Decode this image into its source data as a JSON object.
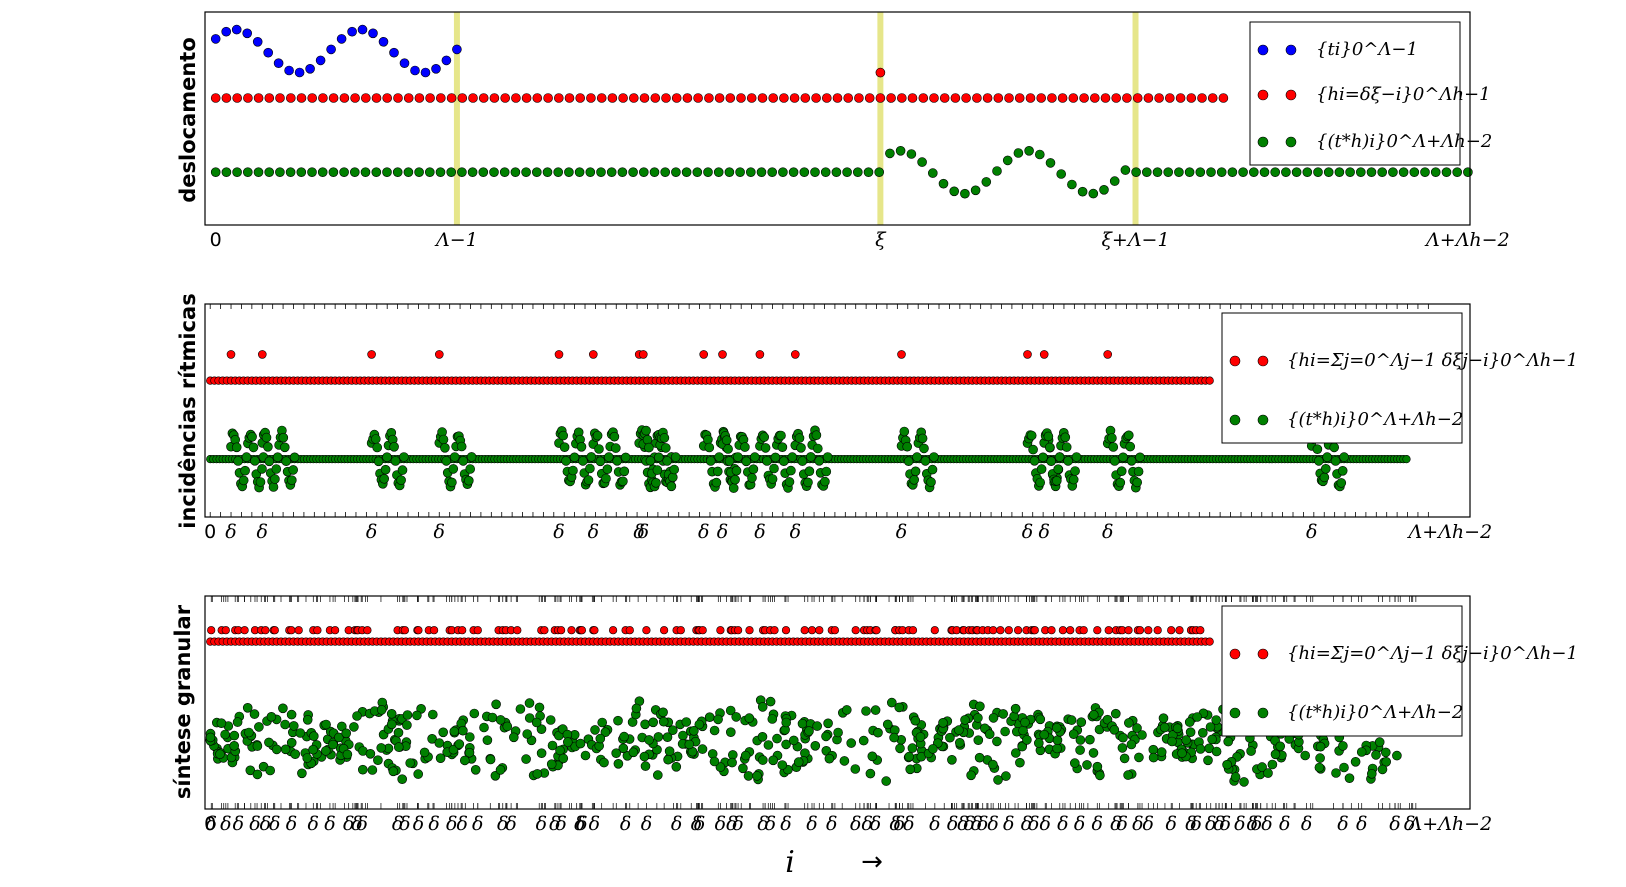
{
  "x_axis_label": "i",
  "x_axis_arrow": "→",
  "chart_data": [
    {
      "type": "scatter",
      "ylabel": "deslocamento",
      "xlim": [
        -10,
        1170
      ],
      "ylim": [
        -1.35,
        4.1
      ],
      "tick_labels": [
        {
          "x": 0,
          "label": "0"
        },
        {
          "x": 225,
          "label": "Λ−1"
        },
        {
          "x": 620,
          "label": "ξ"
        },
        {
          "x": 858,
          "label": "ξ+Λ−1"
        },
        {
          "x": 1168,
          "label": "Λ+Λh−2"
        }
      ],
      "highlight_x": [
        225,
        620,
        858
      ],
      "series": [
        {
          "name": "{ti}0^Λ−1",
          "color": "#0000ff",
          "kind": "wave",
          "x_start": 0,
          "x_end": 225,
          "count": 24,
          "baseline": 3.1,
          "amplitude": 0.55
        },
        {
          "name": "{hi=δξ−i}0^Λh−1",
          "color": "#ff0000",
          "kind": "impulse",
          "x_start": 0,
          "x_end": 940,
          "count": 95,
          "baseline": 1.9,
          "impulse_x": [
            620
          ],
          "impulse_height": 0.65
        },
        {
          "name": "{(t*h)i}0^Λ+Λh−2",
          "color": "#008000",
          "kind": "flat-wave",
          "x_start": 0,
          "x_end": 1168,
          "count": 118,
          "baseline": 0,
          "wave_start": 620,
          "wave_end": 858,
          "amplitude": 0.55
        }
      ],
      "legend": "top-right"
    },
    {
      "type": "scatter",
      "ylabel": "incidências rítmicas",
      "xlim": [
        -5,
        1210
      ],
      "ylim": [
        -1.55,
        4.15
      ],
      "tick_labels": [
        {
          "x": 0,
          "label": "0"
        },
        {
          "x": 1170,
          "label": "Λ+Λh−2"
        }
      ],
      "impulse_label": "δ",
      "impulse_x": [
        20,
        50,
        155,
        220,
        335,
        368,
        412,
        416,
        474,
        492,
        528,
        562,
        664,
        785,
        801,
        862,
        1058
      ],
      "series": [
        {
          "name": "{hi=Σj=0^Λj−1 δξj−i}0^Λh−1",
          "color": "#ff0000",
          "baseline": 2.1,
          "impulse_height": 0.7,
          "x_end": 960
        },
        {
          "name": "{(t*h)i}0^Λ+Λh−2",
          "color": "#008000",
          "baseline": 0,
          "amplitude": 0.65,
          "x_end": 1150
        }
      ],
      "legend": "top-right"
    },
    {
      "type": "scatter",
      "ylabel": "síntese granular",
      "xlim": [
        -5,
        1210
      ],
      "ylim": [
        -1.8,
        3.8
      ],
      "tick_labels": [
        {
          "x": 0,
          "label": "0"
        },
        {
          "x": 1170,
          "label": "Λ+Λh−2"
        }
      ],
      "impulse_label": "δ",
      "impulse_count": 320,
      "series": [
        {
          "name": "{hi=Σj=0^Λj−1 δξj−i}0^Λh−1",
          "color": "#ff0000",
          "baseline": 2.6,
          "impulse_height": 0.3,
          "x_end": 960
        },
        {
          "name": "{(t*h)i}0^Λ+Λh−2",
          "color": "#008000",
          "baseline": 0,
          "amplitude": 1.1,
          "x_end": 1150
        }
      ],
      "legend": "top-right"
    }
  ]
}
